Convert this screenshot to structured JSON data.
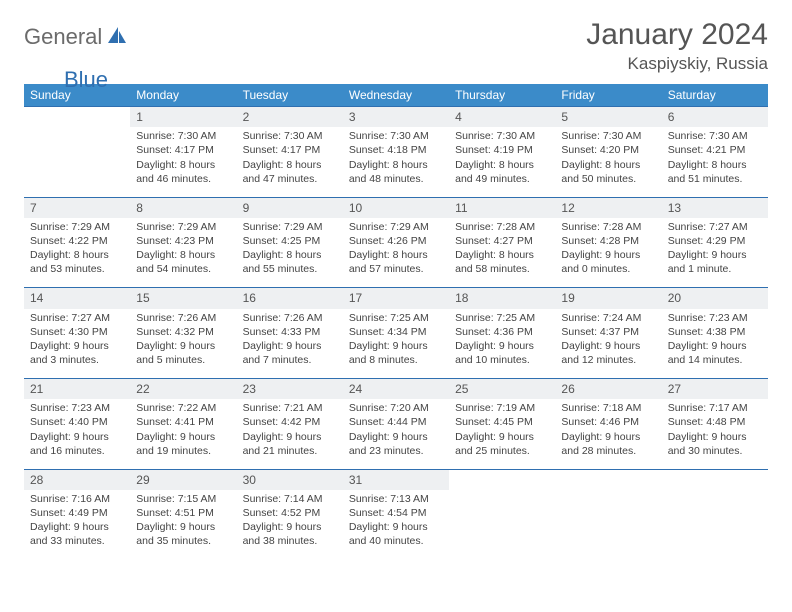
{
  "logo": {
    "general": "General",
    "blue": "Blue"
  },
  "title": "January 2024",
  "location": "Kaspiyskiy, Russia",
  "colors": {
    "header_bg": "#3b8bc9",
    "header_text": "#ffffff",
    "daynum_bg": "#eef0f2",
    "border": "#2f6fb0",
    "text": "#444444",
    "logo_gray": "#6b6b6b",
    "logo_blue": "#2f6fb0"
  },
  "day_headers": [
    "Sunday",
    "Monday",
    "Tuesday",
    "Wednesday",
    "Thursday",
    "Friday",
    "Saturday"
  ],
  "weeks": [
    {
      "nums": [
        "",
        "1",
        "2",
        "3",
        "4",
        "5",
        "6"
      ],
      "cells": [
        {
          "empty": true
        },
        {
          "sunrise": "Sunrise: 7:30 AM",
          "sunset": "Sunset: 4:17 PM",
          "daylight": "Daylight: 8 hours and 46 minutes."
        },
        {
          "sunrise": "Sunrise: 7:30 AM",
          "sunset": "Sunset: 4:17 PM",
          "daylight": "Daylight: 8 hours and 47 minutes."
        },
        {
          "sunrise": "Sunrise: 7:30 AM",
          "sunset": "Sunset: 4:18 PM",
          "daylight": "Daylight: 8 hours and 48 minutes."
        },
        {
          "sunrise": "Sunrise: 7:30 AM",
          "sunset": "Sunset: 4:19 PM",
          "daylight": "Daylight: 8 hours and 49 minutes."
        },
        {
          "sunrise": "Sunrise: 7:30 AM",
          "sunset": "Sunset: 4:20 PM",
          "daylight": "Daylight: 8 hours and 50 minutes."
        },
        {
          "sunrise": "Sunrise: 7:30 AM",
          "sunset": "Sunset: 4:21 PM",
          "daylight": "Daylight: 8 hours and 51 minutes."
        }
      ]
    },
    {
      "nums": [
        "7",
        "8",
        "9",
        "10",
        "11",
        "12",
        "13"
      ],
      "cells": [
        {
          "sunrise": "Sunrise: 7:29 AM",
          "sunset": "Sunset: 4:22 PM",
          "daylight": "Daylight: 8 hours and 53 minutes."
        },
        {
          "sunrise": "Sunrise: 7:29 AM",
          "sunset": "Sunset: 4:23 PM",
          "daylight": "Daylight: 8 hours and 54 minutes."
        },
        {
          "sunrise": "Sunrise: 7:29 AM",
          "sunset": "Sunset: 4:25 PM",
          "daylight": "Daylight: 8 hours and 55 minutes."
        },
        {
          "sunrise": "Sunrise: 7:29 AM",
          "sunset": "Sunset: 4:26 PM",
          "daylight": "Daylight: 8 hours and 57 minutes."
        },
        {
          "sunrise": "Sunrise: 7:28 AM",
          "sunset": "Sunset: 4:27 PM",
          "daylight": "Daylight: 8 hours and 58 minutes."
        },
        {
          "sunrise": "Sunrise: 7:28 AM",
          "sunset": "Sunset: 4:28 PM",
          "daylight": "Daylight: 9 hours and 0 minutes."
        },
        {
          "sunrise": "Sunrise: 7:27 AM",
          "sunset": "Sunset: 4:29 PM",
          "daylight": "Daylight: 9 hours and 1 minute."
        }
      ]
    },
    {
      "nums": [
        "14",
        "15",
        "16",
        "17",
        "18",
        "19",
        "20"
      ],
      "cells": [
        {
          "sunrise": "Sunrise: 7:27 AM",
          "sunset": "Sunset: 4:30 PM",
          "daylight": "Daylight: 9 hours and 3 minutes."
        },
        {
          "sunrise": "Sunrise: 7:26 AM",
          "sunset": "Sunset: 4:32 PM",
          "daylight": "Daylight: 9 hours and 5 minutes."
        },
        {
          "sunrise": "Sunrise: 7:26 AM",
          "sunset": "Sunset: 4:33 PM",
          "daylight": "Daylight: 9 hours and 7 minutes."
        },
        {
          "sunrise": "Sunrise: 7:25 AM",
          "sunset": "Sunset: 4:34 PM",
          "daylight": "Daylight: 9 hours and 8 minutes."
        },
        {
          "sunrise": "Sunrise: 7:25 AM",
          "sunset": "Sunset: 4:36 PM",
          "daylight": "Daylight: 9 hours and 10 minutes."
        },
        {
          "sunrise": "Sunrise: 7:24 AM",
          "sunset": "Sunset: 4:37 PM",
          "daylight": "Daylight: 9 hours and 12 minutes."
        },
        {
          "sunrise": "Sunrise: 7:23 AM",
          "sunset": "Sunset: 4:38 PM",
          "daylight": "Daylight: 9 hours and 14 minutes."
        }
      ]
    },
    {
      "nums": [
        "21",
        "22",
        "23",
        "24",
        "25",
        "26",
        "27"
      ],
      "cells": [
        {
          "sunrise": "Sunrise: 7:23 AM",
          "sunset": "Sunset: 4:40 PM",
          "daylight": "Daylight: 9 hours and 16 minutes."
        },
        {
          "sunrise": "Sunrise: 7:22 AM",
          "sunset": "Sunset: 4:41 PM",
          "daylight": "Daylight: 9 hours and 19 minutes."
        },
        {
          "sunrise": "Sunrise: 7:21 AM",
          "sunset": "Sunset: 4:42 PM",
          "daylight": "Daylight: 9 hours and 21 minutes."
        },
        {
          "sunrise": "Sunrise: 7:20 AM",
          "sunset": "Sunset: 4:44 PM",
          "daylight": "Daylight: 9 hours and 23 minutes."
        },
        {
          "sunrise": "Sunrise: 7:19 AM",
          "sunset": "Sunset: 4:45 PM",
          "daylight": "Daylight: 9 hours and 25 minutes."
        },
        {
          "sunrise": "Sunrise: 7:18 AM",
          "sunset": "Sunset: 4:46 PM",
          "daylight": "Daylight: 9 hours and 28 minutes."
        },
        {
          "sunrise": "Sunrise: 7:17 AM",
          "sunset": "Sunset: 4:48 PM",
          "daylight": "Daylight: 9 hours and 30 minutes."
        }
      ]
    },
    {
      "nums": [
        "28",
        "29",
        "30",
        "31",
        "",
        "",
        ""
      ],
      "cells": [
        {
          "sunrise": "Sunrise: 7:16 AM",
          "sunset": "Sunset: 4:49 PM",
          "daylight": "Daylight: 9 hours and 33 minutes."
        },
        {
          "sunrise": "Sunrise: 7:15 AM",
          "sunset": "Sunset: 4:51 PM",
          "daylight": "Daylight: 9 hours and 35 minutes."
        },
        {
          "sunrise": "Sunrise: 7:14 AM",
          "sunset": "Sunset: 4:52 PM",
          "daylight": "Daylight: 9 hours and 38 minutes."
        },
        {
          "sunrise": "Sunrise: 7:13 AM",
          "sunset": "Sunset: 4:54 PM",
          "daylight": "Daylight: 9 hours and 40 minutes."
        },
        {
          "empty": true
        },
        {
          "empty": true
        },
        {
          "empty": true
        }
      ]
    }
  ]
}
